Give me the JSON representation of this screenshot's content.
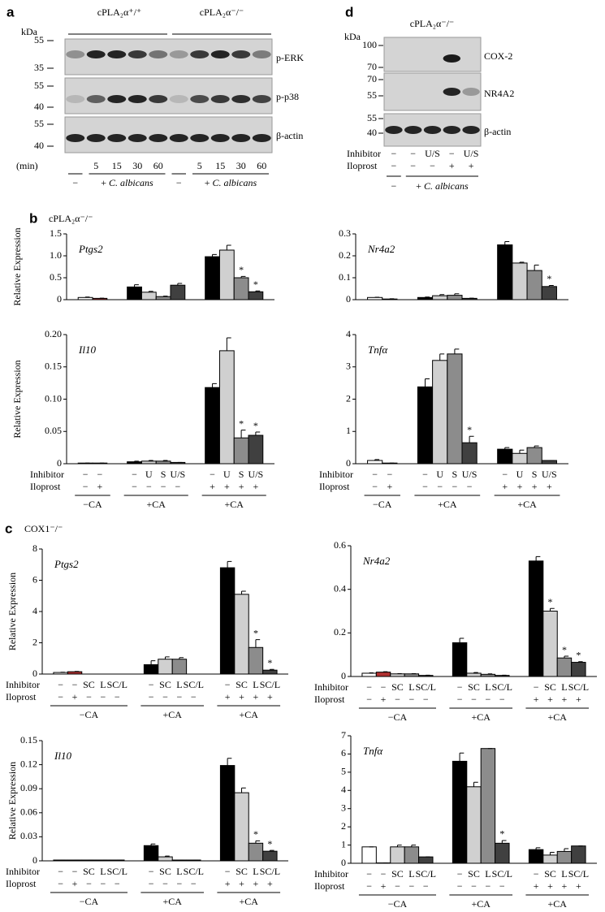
{
  "panel_a": {
    "label": "a",
    "kda": "kDa",
    "genotypes": [
      "cPLA₂α⁺/⁺",
      "cPLA₂α⁻/⁻"
    ],
    "markers": [
      55,
      35,
      55,
      40,
      55,
      40
    ],
    "bands": [
      "p-ERK",
      "p-p38",
      "β-actin"
    ],
    "time_label": "(min)",
    "times": [
      null,
      "5",
      "15",
      "30",
      "60",
      null,
      "5",
      "15",
      "30",
      "60"
    ],
    "treatments": [
      {
        "sign": "−"
      },
      {
        "sign": "+",
        "name": "C. albicans"
      },
      {
        "sign": "−"
      },
      {
        "sign": "+",
        "name": "C. albicans"
      }
    ]
  },
  "panel_d": {
    "label": "d",
    "genotype": "cPLA₂α⁻/⁻",
    "kda": "kDa",
    "markers": [
      100,
      70,
      70,
      55,
      55,
      40
    ],
    "bands": [
      "COX-2",
      "NR4A2",
      "β-actin"
    ],
    "rows": [
      {
        "label": "Inhibitor",
        "values": [
          "−",
          "−",
          "U/S",
          "−",
          "U/S"
        ]
      },
      {
        "label": "Iloprost",
        "values": [
          "−",
          "−",
          "−",
          "+",
          "+"
        ]
      }
    ],
    "treatments": [
      {
        "sign": "−"
      },
      {
        "sign": "+",
        "name": "C. albicans"
      }
    ]
  },
  "panel_b": {
    "label": "b",
    "genotype": "cPLA₂α⁻/⁻"
  },
  "panel_c": {
    "label": "c",
    "genotype": "COX1⁻/⁻"
  },
  "chart_data": [
    {
      "type": "bar",
      "title": "Ptgs2",
      "ylabel": "Relative Expression",
      "ylim": [
        0,
        1.5
      ],
      "yticks": [
        0,
        0.5,
        {
          "value": 1,
          "label": "1.0"
        },
        1.5
      ],
      "groups": [
        {
          "values": [
            0.05,
            0.03
          ],
          "errors": [
            0.01,
            0.005
          ],
          "colors": [
            "#ffffff",
            "#b03030"
          ]
        },
        {
          "values": [
            0.29,
            0.17,
            0.07,
            0.33
          ],
          "errors": [
            0.05,
            0.02,
            0.01,
            0.04
          ],
          "colors": [
            "#000000",
            "#d0d0d0",
            "#8c8c8c",
            "#404040"
          ]
        },
        {
          "values": [
            0.98,
            1.13,
            0.5,
            0.18
          ],
          "errors": [
            0.05,
            0.11,
            0.03,
            0.02
          ],
          "colors": [
            "#000000",
            "#d0d0d0",
            "#8c8c8c",
            "#404040"
          ],
          "annotations": [
            null,
            null,
            "*",
            "*"
          ]
        }
      ]
    },
    {
      "type": "bar",
      "title": "Nr4a2",
      "ylim": [
        0,
        0.3
      ],
      "yticks": [
        0,
        0.1,
        0.2,
        0.3
      ],
      "groups": [
        {
          "values": [
            0.01,
            0.003
          ],
          "errors": [
            0.001,
            0.001
          ],
          "colors": [
            "#ffffff",
            "#b03030"
          ]
        },
        {
          "values": [
            0.01,
            0.018,
            0.02,
            0.006
          ],
          "errors": [
            0.002,
            0.005,
            0.007,
            0.001
          ],
          "colors": [
            "#000000",
            "#d0d0d0",
            "#8c8c8c",
            "#404040"
          ]
        },
        {
          "values": [
            0.25,
            0.167,
            0.133,
            0.06
          ],
          "errors": [
            0.015,
            0.004,
            0.025,
            0.005
          ],
          "colors": [
            "#000000",
            "#d0d0d0",
            "#8c8c8c",
            "#404040"
          ],
          "annotations": [
            null,
            null,
            null,
            "*"
          ]
        }
      ]
    },
    {
      "type": "bar",
      "title": "Il10",
      "ylabel": "Relative Expression",
      "ylim": [
        0,
        0.2
      ],
      "yticks": [
        0,
        0.05,
        {
          "value": 0.1,
          "label": "0.10"
        },
        0.15,
        {
          "value": 0.2,
          "label": "0.20"
        }
      ],
      "row_labels": [
        "Inhibitor",
        "Iloprost"
      ],
      "groups": [
        {
          "label": "−CA",
          "inhibitor": [
            "−",
            "−"
          ],
          "iloprost": [
            "−",
            "+"
          ],
          "values": [
            0.001,
            0.001
          ],
          "errors": [
            0,
            0
          ],
          "colors": [
            "#ffffff",
            "#b03030"
          ]
        },
        {
          "label": "+CA",
          "inhibitor": [
            "−",
            "U",
            "S",
            "U/S"
          ],
          "iloprost": [
            "−",
            "−",
            "−",
            "−"
          ],
          "values": [
            0.003,
            0.004,
            0.004,
            0.002
          ],
          "errors": [
            0.001,
            0.001,
            0.001,
            0
          ],
          "colors": [
            "#000000",
            "#d0d0d0",
            "#8c8c8c",
            "#404040"
          ]
        },
        {
          "label": "+CA",
          "inhibitor": [
            "−",
            "U",
            "S",
            "U/S"
          ],
          "iloprost": [
            "+",
            "+",
            "+",
            "+"
          ],
          "values": [
            0.118,
            0.175,
            0.04,
            0.044
          ],
          "errors": [
            0.006,
            0.02,
            0.012,
            0.005
          ],
          "colors": [
            "#000000",
            "#d0d0d0",
            "#8c8c8c",
            "#404040"
          ],
          "annotations": [
            null,
            null,
            "*",
            "*"
          ]
        }
      ]
    },
    {
      "type": "bar",
      "title": "Tnfα",
      "ylim": [
        0,
        4
      ],
      "yticks": [
        0,
        1,
        2,
        3,
        4
      ],
      "row_labels": [
        "Inhibitor",
        "Iloprost"
      ],
      "groups": [
        {
          "label": "−CA",
          "inhibitor": [
            "−",
            "−"
          ],
          "iloprost": [
            "−",
            "+"
          ],
          "values": [
            0.1,
            0.02
          ],
          "errors": [
            0.03,
            0
          ],
          "colors": [
            "#ffffff",
            "#b03030"
          ]
        },
        {
          "label": "+CA",
          "inhibitor": [
            "−",
            "U",
            "S",
            "U/S"
          ],
          "iloprost": [
            "−",
            "−",
            "−",
            "−"
          ],
          "values": [
            2.38,
            3.2,
            3.4,
            0.65
          ],
          "errors": [
            0.25,
            0.2,
            0.15,
            0.2
          ],
          "colors": [
            "#000000",
            "#d0d0d0",
            "#8c8c8c",
            "#404040"
          ],
          "annotations": [
            null,
            null,
            null,
            "*"
          ]
        },
        {
          "label": "+CA",
          "inhibitor": [
            "−",
            "U",
            "S",
            "U/S"
          ],
          "iloprost": [
            "+",
            "+",
            "+",
            "+"
          ],
          "values": [
            0.45,
            0.32,
            0.5,
            0.1
          ],
          "errors": [
            0.05,
            0.1,
            0.05,
            0
          ],
          "colors": [
            "#000000",
            "#d0d0d0",
            "#8c8c8c",
            "#404040"
          ]
        }
      ]
    },
    {
      "type": "bar",
      "title": "Ptgs2",
      "ylabel": "Relative Expression",
      "ylim": [
        0,
        8
      ],
      "yticks": [
        0,
        2,
        4,
        6,
        8
      ],
      "row_labels": [
        "Inhibitor",
        "Iloprost"
      ],
      "groups": [
        {
          "label": "−CA",
          "inhibitor": [
            "−",
            "−",
            "SC",
            "L",
            "SC/L"
          ],
          "iloprost": [
            "−",
            "+",
            "−",
            "−",
            "−"
          ],
          "values": [
            0.1,
            0.15,
            0,
            0,
            0
          ],
          "errors": [
            0.02,
            0.02,
            0,
            0,
            0
          ],
          "colors": [
            "#ffffff",
            "#b03030",
            "#d0d0d0",
            "#8c8c8c",
            "#404040"
          ]
        },
        {
          "label": "+CA",
          "inhibitor": [
            "−",
            "SC",
            "L",
            "SC/L"
          ],
          "iloprost": [
            "−",
            "−",
            "−",
            "−"
          ],
          "values": [
            0.6,
            0.95,
            0.95,
            0
          ],
          "errors": [
            0.25,
            0.15,
            0.1,
            0
          ],
          "colors": [
            "#000000",
            "#d0d0d0",
            "#8c8c8c",
            "#404040"
          ]
        },
        {
          "label": "+CA",
          "inhibitor": [
            "−",
            "SC",
            "L",
            "SC/L"
          ],
          "iloprost": [
            "+",
            "+",
            "+",
            "+"
          ],
          "values": [
            6.8,
            5.1,
            1.7,
            0.25
          ],
          "errors": [
            0.4,
            0.2,
            0.5,
            0.05
          ],
          "colors": [
            "#000000",
            "#d0d0d0",
            "#8c8c8c",
            "#404040"
          ],
          "annotations": [
            null,
            null,
            "*",
            "*"
          ]
        }
      ]
    },
    {
      "type": "bar",
      "title": "Nr4a2",
      "ylim": [
        0,
        0.6
      ],
      "yticks": [
        0,
        0.2,
        0.4,
        0.6
      ],
      "row_labels": [
        "Inhibitor",
        "Iloprost"
      ],
      "groups": [
        {
          "label": "−CA",
          "inhibitor": [
            "−",
            "−",
            "SC",
            "L",
            "SC/L"
          ],
          "iloprost": [
            "−",
            "+",
            "−",
            "−",
            "−"
          ],
          "values": [
            0.015,
            0.02,
            0.012,
            0.012,
            0.005
          ],
          "errors": [
            0.002,
            0.002,
            0.001,
            0.001,
            0.001
          ],
          "colors": [
            "#ffffff",
            "#b03030",
            "#d0d0d0",
            "#8c8c8c",
            "#404040"
          ]
        },
        {
          "label": "+CA",
          "inhibitor": [
            "−",
            "SC",
            "L",
            "SC/L"
          ],
          "iloprost": [
            "−",
            "−",
            "−",
            "−"
          ],
          "values": [
            0.155,
            0.015,
            0.01,
            0.005
          ],
          "errors": [
            0.02,
            0.003,
            0.002,
            0.001
          ],
          "colors": [
            "#000000",
            "#d0d0d0",
            "#8c8c8c",
            "#404040"
          ]
        },
        {
          "label": "+CA",
          "inhibitor": [
            "−",
            "SC",
            "L",
            "SC/L"
          ],
          "iloprost": [
            "+",
            "+",
            "+",
            "+"
          ],
          "values": [
            0.53,
            0.3,
            0.085,
            0.065
          ],
          "errors": [
            0.02,
            0.012,
            0.008,
            0.003
          ],
          "colors": [
            "#000000",
            "#d0d0d0",
            "#8c8c8c",
            "#404040"
          ],
          "annotations": [
            null,
            "*",
            "*",
            "*"
          ]
        }
      ]
    },
    {
      "type": "bar",
      "title": "Il10",
      "ylabel": "Relative Expression",
      "ylim": [
        0,
        0.15
      ],
      "yticks": [
        0,
        0.03,
        0.06,
        0.09,
        0.12,
        0.15
      ],
      "row_labels": [
        "Inhibitor",
        "Iloprost"
      ],
      "groups": [
        {
          "label": "−CA",
          "inhibitor": [
            "−",
            "−",
            "SC",
            "L",
            "SC/L"
          ],
          "iloprost": [
            "−",
            "+",
            "−",
            "−",
            "−"
          ],
          "values": [
            0.001,
            0.001,
            0.001,
            0.001,
            0.001
          ],
          "errors": [
            0,
            0,
            0,
            0,
            0
          ],
          "colors": [
            "#ffffff",
            "#b03030",
            "#d0d0d0",
            "#8c8c8c",
            "#404040"
          ]
        },
        {
          "label": "+CA",
          "inhibitor": [
            "−",
            "SC",
            "L",
            "SC/L"
          ],
          "iloprost": [
            "−",
            "−",
            "−",
            "−"
          ],
          "values": [
            0.019,
            0.005,
            0.001,
            0.001
          ],
          "errors": [
            0.002,
            0.001,
            0,
            0
          ],
          "colors": [
            "#000000",
            "#d0d0d0",
            "#8c8c8c",
            "#404040"
          ]
        },
        {
          "label": "+CA",
          "inhibitor": [
            "−",
            "SC",
            "L",
            "SC/L"
          ],
          "iloprost": [
            "+",
            "+",
            "+",
            "+"
          ],
          "values": [
            0.119,
            0.085,
            0.022,
            0.012
          ],
          "errors": [
            0.009,
            0.006,
            0.003,
            0.001
          ],
          "colors": [
            "#000000",
            "#d0d0d0",
            "#8c8c8c",
            "#404040"
          ],
          "annotations": [
            null,
            null,
            "*",
            "*"
          ]
        }
      ]
    },
    {
      "type": "bar",
      "title": "Tnfα",
      "ylim": [
        0,
        7
      ],
      "yticks": [
        0,
        1,
        2,
        3,
        4,
        5,
        6,
        7
      ],
      "row_labels": [
        "Inhibitor",
        "Iloprost"
      ],
      "groups": [
        {
          "label": "−CA",
          "inhibitor": [
            "−",
            "−",
            "SC",
            "L",
            "SC/L"
          ],
          "iloprost": [
            "−",
            "+",
            "−",
            "−",
            "−"
          ],
          "values": [
            0.9,
            0.02,
            0.9,
            0.9,
            0.35
          ],
          "errors": [
            0,
            0,
            0.1,
            0.1,
            0
          ],
          "colors": [
            "#ffffff",
            "#b03030",
            "#d0d0d0",
            "#8c8c8c",
            "#404040"
          ]
        },
        {
          "label": "+CA",
          "inhibitor": [
            "−",
            "SC",
            "L",
            "SC/L"
          ],
          "iloprost": [
            "−",
            "−",
            "−",
            "−"
          ],
          "values": [
            5.6,
            4.2,
            6.3,
            1.1
          ],
          "errors": [
            0.45,
            0.25,
            0,
            0.15
          ],
          "colors": [
            "#000000",
            "#d0d0d0",
            "#8c8c8c",
            "#404040"
          ],
          "annotations": [
            null,
            null,
            null,
            "*"
          ]
        },
        {
          "label": "+CA",
          "inhibitor": [
            "−",
            "SC",
            "L",
            "SC/L"
          ],
          "iloprost": [
            "+",
            "+",
            "+",
            "+"
          ],
          "values": [
            0.75,
            0.45,
            0.65,
            0.95
          ],
          "errors": [
            0.1,
            0.15,
            0.15,
            0
          ],
          "colors": [
            "#000000",
            "#d0d0d0",
            "#8c8c8c",
            "#404040"
          ]
        }
      ]
    }
  ]
}
